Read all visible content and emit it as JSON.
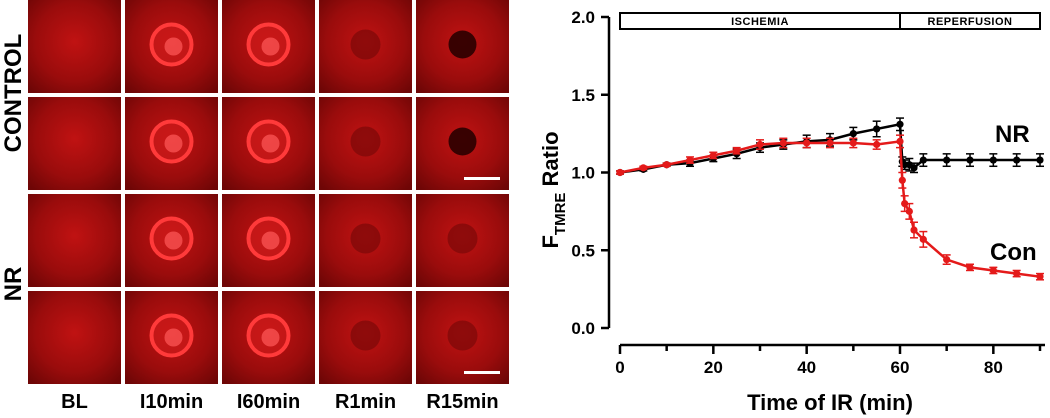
{
  "panel_images": {
    "row_labels": [
      "CONTROL",
      "NR"
    ],
    "column_labels": [
      "BL",
      "I10min",
      "I60min",
      "R1min",
      "R15min"
    ],
    "tile_rows": [
      {
        "group": "CONTROL",
        "tiles": [
          {
            "col": "BL",
            "ring": "none",
            "center": "none"
          },
          {
            "col": "I10min",
            "ring": "bright",
            "center": "none"
          },
          {
            "col": "I60min",
            "ring": "bright",
            "center": "none"
          },
          {
            "col": "R1min",
            "ring": "none",
            "center": "faint"
          },
          {
            "col": "R15min",
            "ring": "none",
            "center": "dark"
          }
        ]
      },
      {
        "group": "CONTROL",
        "tiles": [
          {
            "col": "BL",
            "ring": "none",
            "center": "none"
          },
          {
            "col": "I10min",
            "ring": "bright",
            "center": "none"
          },
          {
            "col": "I60min",
            "ring": "bright",
            "center": "none"
          },
          {
            "col": "R1min",
            "ring": "none",
            "center": "faint"
          },
          {
            "col": "R15min",
            "ring": "none",
            "center": "dark"
          }
        ]
      },
      {
        "group": "NR",
        "tiles": [
          {
            "col": "BL",
            "ring": "none",
            "center": "none"
          },
          {
            "col": "I10min",
            "ring": "bright",
            "center": "none"
          },
          {
            "col": "I60min",
            "ring": "bright",
            "center": "none"
          },
          {
            "col": "R1min",
            "ring": "none",
            "center": "faint"
          },
          {
            "col": "R15min",
            "ring": "none",
            "center": "faint"
          }
        ]
      },
      {
        "group": "NR",
        "tiles": [
          {
            "col": "BL",
            "ring": "none",
            "center": "none"
          },
          {
            "col": "I10min",
            "ring": "bright",
            "center": "none"
          },
          {
            "col": "I60min",
            "ring": "bright",
            "center": "none"
          },
          {
            "col": "R1min",
            "ring": "none",
            "center": "faint"
          },
          {
            "col": "R15min",
            "ring": "none",
            "center": "faint"
          }
        ]
      }
    ],
    "scale_bars_on_rows": [
      2,
      4
    ],
    "colors": {
      "tile_base": "#8a0a0a",
      "tile_glow": "#c81414",
      "ring": "#ff3a3a",
      "separator": "#ffffff"
    }
  },
  "chart_data": {
    "type": "line",
    "xlabel": "Time of IR (min)",
    "ylabel_main": "F",
    "ylabel_sub": "TMRE",
    "ylabel_tail": " Ratio",
    "xlim": [
      0,
      90
    ],
    "ylim": [
      0.0,
      2.0
    ],
    "xticks": [
      0,
      20,
      40,
      60,
      80
    ],
    "yticks": [
      0.0,
      0.5,
      1.0,
      1.5,
      2.0
    ],
    "ytick_labels": [
      "0.0",
      "0.5",
      "1.0",
      "1.5",
      "2.0"
    ],
    "phases": [
      {
        "label": "ISCHEMIA",
        "start": 0,
        "end": 60
      },
      {
        "label": "REPERFUSION",
        "start": 60,
        "end": 90
      }
    ],
    "series": [
      {
        "name": "NR",
        "color": "#000000",
        "x": [
          0,
          5,
          10,
          15,
          20,
          25,
          30,
          35,
          40,
          45,
          50,
          55,
          60,
          60.5,
          61,
          62,
          63,
          65,
          70,
          75,
          80,
          85,
          90
        ],
        "y": [
          1.0,
          1.02,
          1.05,
          1.06,
          1.09,
          1.12,
          1.16,
          1.18,
          1.2,
          1.21,
          1.25,
          1.28,
          1.31,
          1.07,
          1.05,
          1.05,
          1.03,
          1.08,
          1.08,
          1.08,
          1.08,
          1.08,
          1.08
        ],
        "err": [
          0.01,
          0.01,
          0.01,
          0.02,
          0.02,
          0.03,
          0.03,
          0.03,
          0.04,
          0.04,
          0.04,
          0.05,
          0.04,
          0.03,
          0.03,
          0.04,
          0.03,
          0.04,
          0.04,
          0.04,
          0.04,
          0.04,
          0.04
        ]
      },
      {
        "name": "Con",
        "color": "#e41a1a",
        "x": [
          0,
          5,
          10,
          15,
          20,
          25,
          30,
          35,
          40,
          45,
          50,
          55,
          60,
          60.5,
          61,
          62,
          63,
          65,
          70,
          75,
          80,
          85,
          90
        ],
        "y": [
          1.0,
          1.03,
          1.05,
          1.08,
          1.11,
          1.14,
          1.18,
          1.19,
          1.19,
          1.19,
          1.19,
          1.18,
          1.2,
          0.95,
          0.8,
          0.75,
          0.63,
          0.57,
          0.44,
          0.39,
          0.37,
          0.35,
          0.33
        ],
        "err": [
          0.01,
          0.01,
          0.01,
          0.02,
          0.02,
          0.02,
          0.03,
          0.03,
          0.03,
          0.03,
          0.03,
          0.03,
          0.04,
          0.05,
          0.05,
          0.05,
          0.05,
          0.05,
          0.03,
          0.02,
          0.02,
          0.02,
          0.02
        ]
      }
    ]
  }
}
